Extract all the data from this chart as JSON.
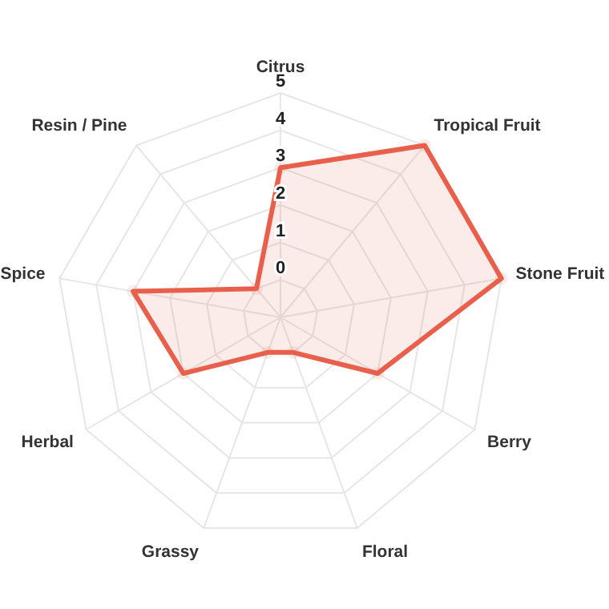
{
  "chart_data": {
    "type": "radar",
    "categories": [
      "Citrus",
      "Tropical Fruit",
      "Stone Fruit",
      "Berry",
      "Floral",
      "Grassy",
      "Herbal",
      "Spice",
      "Resin / Pine"
    ],
    "series": [
      {
        "color": "#e8604c",
        "values": [
          3,
          5,
          5,
          2,
          0,
          0,
          2,
          3,
          0
        ]
      }
    ],
    "ylim": [
      -1,
      5
    ],
    "yticks": [
      0,
      1,
      2,
      3,
      4,
      5
    ],
    "grid": true,
    "marker": "circle"
  }
}
